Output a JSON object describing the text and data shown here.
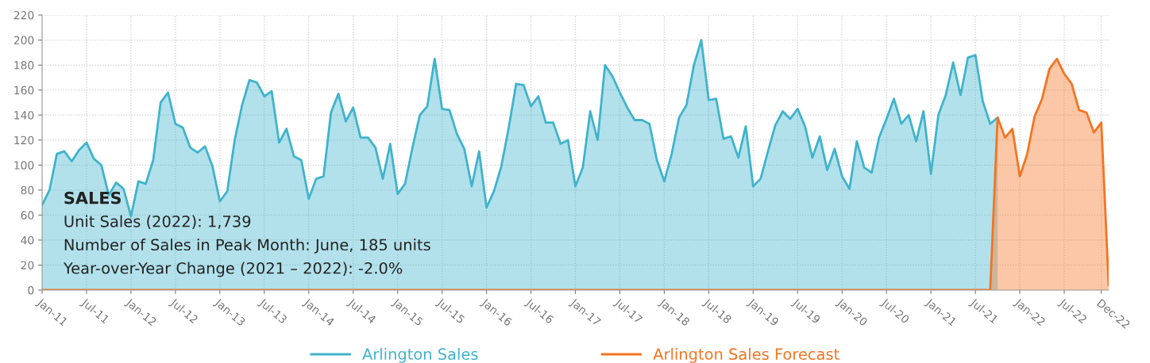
{
  "chart_data": {
    "type": "area",
    "categories": [
      "Jan-11",
      null,
      null,
      null,
      null,
      null,
      "Jul-11",
      null,
      null,
      null,
      null,
      null,
      "Jan-12",
      null,
      null,
      null,
      null,
      null,
      "Jul-12",
      null,
      null,
      null,
      null,
      null,
      "Jan-13",
      null,
      null,
      null,
      null,
      null,
      "Jul-13",
      null,
      null,
      null,
      null,
      null,
      "Jan-14",
      null,
      null,
      null,
      null,
      null,
      "Jul-14",
      null,
      null,
      null,
      null,
      null,
      "Jan-15",
      null,
      null,
      null,
      null,
      null,
      "Jul-15",
      null,
      null,
      null,
      null,
      null,
      "Jan-16",
      null,
      null,
      null,
      null,
      null,
      "Jul-16",
      null,
      null,
      null,
      null,
      null,
      "Jan-17",
      null,
      null,
      null,
      null,
      null,
      "Jul-17",
      null,
      null,
      null,
      null,
      null,
      "Jan-18",
      null,
      null,
      null,
      null,
      null,
      "Jul-18",
      null,
      null,
      null,
      null,
      null,
      "Jan-19",
      null,
      null,
      null,
      null,
      null,
      "Jul-19",
      null,
      null,
      null,
      null,
      null,
      "Jan-20",
      null,
      null,
      null,
      null,
      null,
      "Jul-20",
      null,
      null,
      null,
      null,
      null,
      "Jan-21",
      null,
      null,
      null,
      null,
      null,
      "Jul-21",
      null,
      null,
      null,
      null,
      null,
      "Jan-22",
      null,
      null,
      null,
      null,
      null,
      "Jul-22",
      null,
      null,
      null,
      null,
      "Dec-22",
      null
    ],
    "series": [
      {
        "name": "Arlington Sales",
        "color": "#3fb3cc",
        "values": [
          68,
          80,
          109,
          111,
          103,
          112,
          118,
          105,
          100,
          76,
          86,
          81,
          59,
          87,
          85,
          104,
          150,
          158,
          133,
          130,
          114,
          110,
          115,
          99,
          71,
          79,
          120,
          148,
          168,
          166,
          155,
          159,
          118,
          129,
          107,
          104,
          73,
          89,
          91,
          142,
          157,
          135,
          146,
          122,
          122,
          114,
          89,
          117,
          77,
          85,
          114,
          140,
          147,
          185,
          145,
          144,
          125,
          113,
          83,
          111,
          66,
          79,
          99,
          130,
          165,
          164,
          147,
          155,
          134,
          134,
          117,
          120,
          83,
          98,
          143,
          120,
          180,
          171,
          158,
          146,
          136,
          136,
          133,
          104,
          87,
          109,
          138,
          148,
          180,
          200,
          152,
          153,
          121,
          123,
          106,
          131,
          83,
          89,
          111,
          132,
          143,
          137,
          145,
          131,
          106,
          123,
          96,
          113,
          91,
          81,
          119,
          98,
          94,
          122,
          137,
          153,
          133,
          140,
          119,
          143,
          93,
          140,
          156,
          182,
          156,
          186,
          188,
          151,
          133,
          138,
          null,
          null,
          null,
          null,
          null,
          null,
          null,
          null,
          null,
          null,
          null,
          null,
          null,
          null,
          null
        ]
      },
      {
        "name": "Arlington Sales Forecast",
        "color": "#f47421",
        "values": [
          0,
          0,
          0,
          0,
          0,
          0,
          0,
          0,
          0,
          0,
          0,
          0,
          0,
          0,
          0,
          0,
          0,
          0,
          0,
          0,
          0,
          0,
          0,
          0,
          0,
          0,
          0,
          0,
          0,
          0,
          0,
          0,
          0,
          0,
          0,
          0,
          0,
          0,
          0,
          0,
          0,
          0,
          0,
          0,
          0,
          0,
          0,
          0,
          0,
          0,
          0,
          0,
          0,
          0,
          0,
          0,
          0,
          0,
          0,
          0,
          0,
          0,
          0,
          0,
          0,
          0,
          0,
          0,
          0,
          0,
          0,
          0,
          0,
          0,
          0,
          0,
          0,
          0,
          0,
          0,
          0,
          0,
          0,
          0,
          0,
          0,
          0,
          0,
          0,
          0,
          0,
          0,
          0,
          0,
          0,
          0,
          0,
          0,
          0,
          0,
          0,
          0,
          0,
          0,
          0,
          0,
          0,
          0,
          0,
          0,
          0,
          0,
          0,
          0,
          0,
          0,
          0,
          0,
          0,
          0,
          0,
          0,
          0,
          0,
          0,
          0,
          0,
          0,
          0,
          138,
          122,
          129,
          91,
          109,
          139,
          153,
          177,
          185,
          173,
          165,
          144,
          142,
          126,
          134,
          4
        ]
      }
    ],
    "ylim": [
      0,
      220
    ],
    "yticks": [
      0,
      20,
      40,
      60,
      80,
      100,
      120,
      140,
      160,
      180,
      200,
      220
    ],
    "grid": true,
    "legend": "bottom",
    "annotations": [
      "SALES",
      "Unit Sales (2022): 1,739",
      "Number of Sales in Peak Month: June, 185 units",
      "Year-over-Year Change (2021 – 2022): -2.0%"
    ]
  }
}
